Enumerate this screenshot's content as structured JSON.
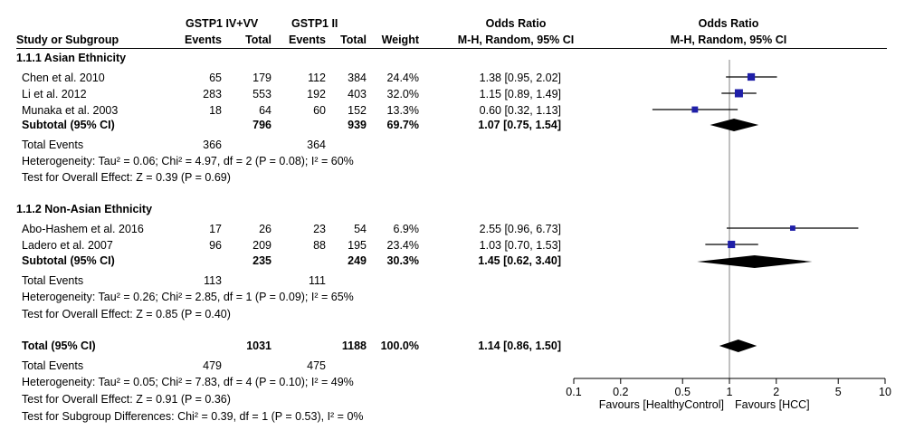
{
  "header": {
    "group1": "GSTP1 IV+VV",
    "group2": "GSTP1 II",
    "or_title_left": "Odds Ratio",
    "or_method_left": "M-H, Random, 95% CI",
    "or_title_right": "Odds Ratio",
    "or_method_right": "M-H, Random, 95% CI",
    "study": "Study or Subgroup",
    "events1": "Events",
    "total1": "Total",
    "events2": "Events",
    "total2": "Total",
    "weight": "Weight"
  },
  "subgroups": [
    {
      "title": "1.1.1 Asian Ethnicity",
      "studies": [
        {
          "name": "Chen et al. 2010",
          "e1": "65",
          "t1": "179",
          "e2": "112",
          "t2": "384",
          "weight": "24.4%",
          "or_text": "1.38 [0.95, 2.02]"
        },
        {
          "name": "Li et al. 2012",
          "e1": "283",
          "t1": "553",
          "e2": "192",
          "t2": "403",
          "weight": "32.0%",
          "or_text": "1.15 [0.89, 1.49]"
        },
        {
          "name": "Munaka et al. 2003",
          "e1": "18",
          "t1": "64",
          "e2": "60",
          "t2": "152",
          "weight": "13.3%",
          "or_text": "0.60 [0.32, 1.13]"
        }
      ],
      "subtotal": {
        "label": "Subtotal (95% CI)",
        "t1": "796",
        "t2": "939",
        "weight": "69.7%",
        "or_text": "1.07 [0.75, 1.54]"
      },
      "total_events": {
        "label": "Total Events",
        "e1": "366",
        "e2": "364"
      },
      "heterogeneity": "Heterogeneity: Tau² = 0.06; Chi² = 4.97, df = 2 (P = 0.08); I² = 60%",
      "overall": "Test for Overall Effect: Z = 0.39 (P = 0.69)"
    },
    {
      "title": "1.1.2 Non-Asian Ethnicity",
      "studies": [
        {
          "name": "Abo-Hashem et al. 2016",
          "e1": "17",
          "t1": "26",
          "e2": "23",
          "t2": "54",
          "weight": "6.9%",
          "or_text": "2.55 [0.96, 6.73]"
        },
        {
          "name": "Ladero et al. 2007",
          "e1": "96",
          "t1": "209",
          "e2": "88",
          "t2": "195",
          "weight": "23.4%",
          "or_text": "1.03 [0.70, 1.53]"
        }
      ],
      "subtotal": {
        "label": "Subtotal (95% CI)",
        "t1": "235",
        "t2": "249",
        "weight": "30.3%",
        "or_text": "1.45 [0.62, 3.40]"
      },
      "total_events": {
        "label": "Total Events",
        "e1": "113",
        "e2": "111"
      },
      "heterogeneity": "Heterogeneity: Tau² = 0.26; Chi² = 2.85, df = 1 (P = 0.09); I² = 65%",
      "overall": "Test for Overall Effect: Z = 0.85 (P = 0.40)"
    }
  ],
  "total": {
    "label": "Total (95% CI)",
    "t1": "1031",
    "t2": "1188",
    "weight": "100.0%",
    "or_text": "1.14 [0.86, 1.50]",
    "total_events": {
      "label": "Total Events",
      "e1": "479",
      "e2": "475"
    },
    "heterogeneity": "Heterogeneity: Tau² = 0.05; Chi² = 7.83, df = 4 (P = 0.10); I² = 49%",
    "overall": "Test for Overall Effect: Z = 0.91 (P = 0.36)",
    "subgroup_diff": "Test for Subgroup Differences: Chi² = 0.39, df = 1 (P = 0.53), I² = 0%"
  },
  "axis": {
    "favours_left": "Favours [HealthyControl]",
    "favours_right": "Favours [HCC]"
  },
  "colors": {
    "marker": "#1f1fa8",
    "line": "#000000",
    "gridline": "#808080"
  },
  "chart_data": {
    "type": "forest",
    "scale": "log",
    "xlim": [
      0.1,
      10
    ],
    "ticks": [
      0.1,
      0.2,
      0.5,
      1,
      2,
      5,
      10
    ],
    "tick_labels": [
      "0.1",
      "0.2",
      "0.5",
      "1",
      "2",
      "5",
      "10"
    ],
    "studies": [
      {
        "name": "Chen et al. 2010",
        "or": 1.38,
        "lo": 0.95,
        "hi": 2.02,
        "weight": 24.4
      },
      {
        "name": "Li et al. 2012",
        "or": 1.15,
        "lo": 0.89,
        "hi": 1.49,
        "weight": 32.0
      },
      {
        "name": "Munaka et al. 2003",
        "or": 0.6,
        "lo": 0.32,
        "hi": 1.13,
        "weight": 13.3
      },
      {
        "name": "Abo-Hashem et al. 2016",
        "or": 2.55,
        "lo": 0.96,
        "hi": 6.73,
        "weight": 6.9
      },
      {
        "name": "Ladero et al. 2007",
        "or": 1.03,
        "lo": 0.7,
        "hi": 1.53,
        "weight": 23.4
      }
    ],
    "summaries": [
      {
        "name": "Subtotal (95% CI)",
        "or": 1.07,
        "lo": 0.75,
        "hi": 1.54
      },
      {
        "name": "Subtotal (95% CI)",
        "or": 1.45,
        "lo": 0.62,
        "hi": 3.4
      },
      {
        "name": "Total (95% CI)",
        "or": 1.14,
        "lo": 0.86,
        "hi": 1.5
      }
    ]
  }
}
